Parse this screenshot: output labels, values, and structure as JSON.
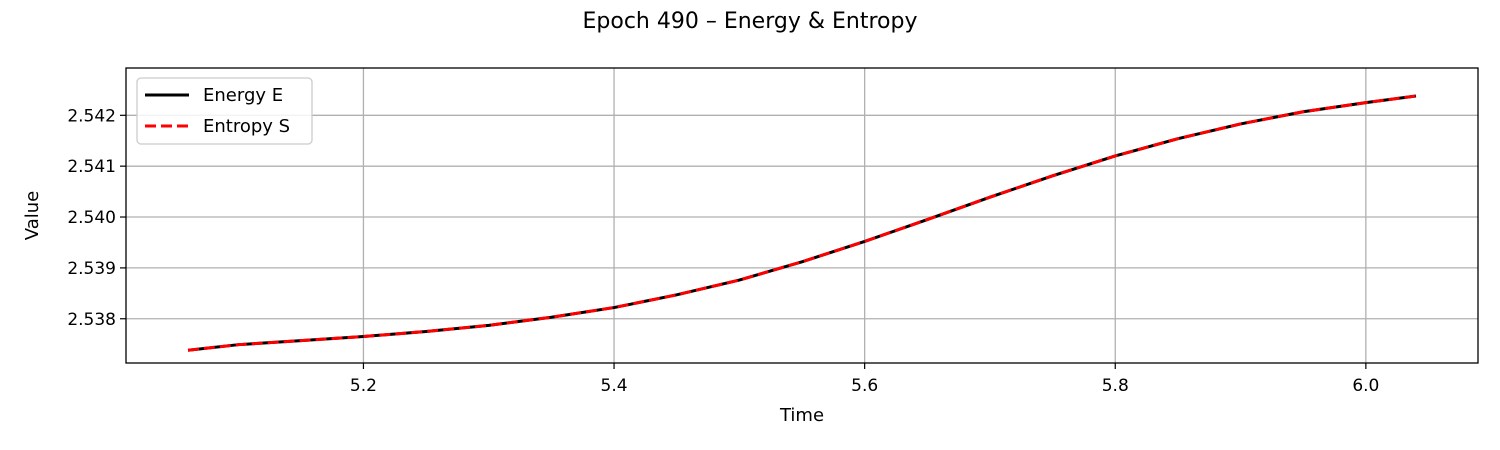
{
  "chart_data": {
    "type": "line",
    "title": "Epoch 490 – Energy & Entropy",
    "xlabel": "Time",
    "ylabel": "Value",
    "xlim": [
      5.0105,
      6.0895
    ],
    "ylim": [
      2.53713,
      2.54293
    ],
    "xticks": [
      5.2,
      5.4,
      5.6,
      5.8,
      6.0
    ],
    "xtick_labels": [
      "5.2",
      "5.4",
      "5.6",
      "5.8",
      "6.0"
    ],
    "yticks": [
      2.538,
      2.539,
      2.54,
      2.541,
      2.542
    ],
    "ytick_labels": [
      "2.538",
      "2.539",
      "2.540",
      "2.541",
      "2.542"
    ],
    "grid": true,
    "legend_position": "upper-left",
    "x": [
      5.06,
      5.1,
      5.15,
      5.2,
      5.25,
      5.3,
      5.35,
      5.4,
      5.45,
      5.5,
      5.55,
      5.6,
      5.65,
      5.7,
      5.75,
      5.8,
      5.85,
      5.9,
      5.95,
      6.0,
      6.04
    ],
    "series": [
      {
        "name": "Energy E",
        "color": "#000000",
        "style": "solid",
        "values": [
          2.53738,
          2.53749,
          2.53757,
          2.53765,
          2.53775,
          2.53787,
          2.53803,
          2.53822,
          2.53847,
          2.53876,
          2.53912,
          2.53952,
          2.53995,
          2.54039,
          2.54081,
          2.5412,
          2.54154,
          2.54183,
          2.54207,
          2.54225,
          2.54238
        ]
      },
      {
        "name": "Entropy S",
        "color": "#ff0000",
        "style": "dashed",
        "values": [
          2.53738,
          2.53749,
          2.53757,
          2.53765,
          2.53775,
          2.53787,
          2.53803,
          2.53822,
          2.53847,
          2.53876,
          2.53912,
          2.53952,
          2.53995,
          2.54039,
          2.54081,
          2.5412,
          2.54154,
          2.54183,
          2.54207,
          2.54225,
          2.54238
        ]
      }
    ]
  }
}
